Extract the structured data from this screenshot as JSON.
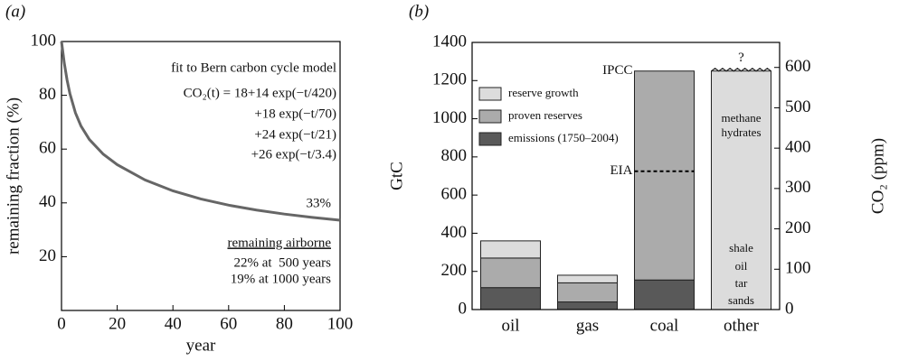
{
  "chart_data": [
    {
      "type": "line",
      "panel_label": "(a)",
      "x": [
        0,
        1,
        2,
        3,
        5,
        7,
        10,
        15,
        20,
        30,
        40,
        50,
        60,
        70,
        80,
        90,
        100
      ],
      "values": [
        100,
        91.97,
        85.68,
        80.71,
        73.48,
        68.57,
        63.56,
        58.1,
        54.21,
        48.51,
        44.47,
        41.46,
        39.15,
        37.33,
        35.84,
        34.61,
        33.55
      ],
      "color": "#666666",
      "xlim": [
        0,
        100
      ],
      "xticks": [
        0,
        20,
        40,
        60,
        80,
        100
      ],
      "ylim": [
        0,
        100
      ],
      "yticks": [
        20,
        40,
        60,
        80,
        100
      ],
      "xlabel": "year",
      "ylabel": "remaining fraction (%)",
      "annotations": [
        "fit to Bern carbon cycle model",
        "CO₂(t) = 18+14 exp(−t/420)",
        "+18 exp(−t/70)",
        "+24 exp(−t/21)",
        "+26 exp(−t/3.4)",
        "33%",
        "remaining airborne",
        "22% at  500 years",
        "19% at 1000 years"
      ]
    },
    {
      "type": "stacked_bar",
      "panel_label": "(b)",
      "categories": [
        "oil",
        "gas",
        "coal",
        "other"
      ],
      "series": [
        {
          "name": "emissions (1750–2004)",
          "color": "#595959",
          "values": [
            115,
            40,
            155,
            null
          ]
        },
        {
          "name": "proven reserves",
          "color": "#ababab",
          "values": [
            155,
            100,
            1095,
            null
          ]
        },
        {
          "name": "reserve growth",
          "color": "#dcdcdc",
          "values": [
            90,
            40,
            null,
            1250
          ]
        }
      ],
      "ylim": [
        0,
        1400
      ],
      "yticks": [
        0,
        200,
        400,
        600,
        800,
        1000,
        1200,
        1400
      ],
      "y2lim": [
        0,
        662
      ],
      "y2ticks": [
        0,
        100,
        200,
        300,
        400,
        500,
        600
      ],
      "ylabel": "GtC",
      "y2label": "CO₂ (ppm)",
      "legend": "upper left",
      "reference_lines": [
        {
          "label": "IPCC",
          "value": 1250
        },
        {
          "label": "EIA",
          "value": 725
        }
      ],
      "annotations": [
        "?",
        "methane",
        "hydrates",
        "shale",
        "oil",
        "tar",
        "sands"
      ]
    }
  ]
}
